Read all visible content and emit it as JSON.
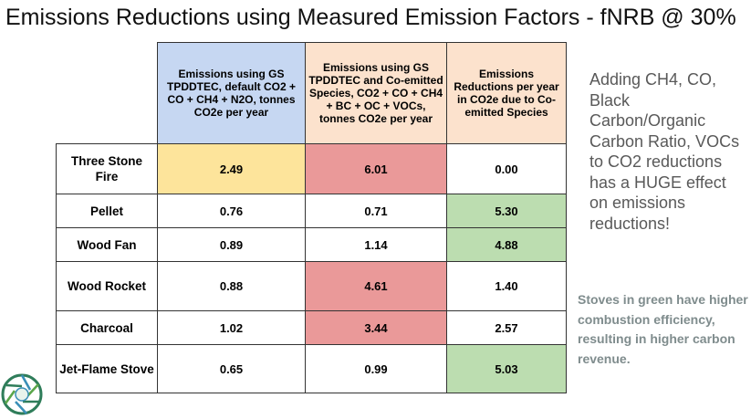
{
  "slide": {
    "title": "Emissions Reductions using Measured Emission Factors - fNRB @ 30%",
    "side_note": "Adding CH4, CO, Black Carbon/Organic Carbon Ratio, VOCs to CO2 reductions has a HUGE effect on emissions reductions!",
    "green_note": "Stoves in green have higher combustion efficiency, resulting in higher carbon revenue."
  },
  "colors": {
    "header_blue": "#c6d7f2",
    "header_peach": "#fce2cd",
    "highlight_yellow": "#fde49b",
    "highlight_red": "#ea9999",
    "highlight_green": "#bcddb0",
    "white": "#ffffff"
  },
  "table": {
    "headers": [
      "Emissions using GS TPDDTEC, default CO2 + CO + CH4 + N2O, tonnes CO2e per year",
      "Emissions using GS TPDDTEC and Co-emitted Species, CO2 + CO + CH4  + BC + OC + VOCs, tonnes CO2e per year",
      "Emissions Reductions per year in CO2e due to Co-emitted Species"
    ],
    "rows": [
      {
        "label": "Three Stone Fire",
        "values": [
          "2.49",
          "6.01",
          "0.00"
        ],
        "fills": [
          "highlight_yellow",
          "highlight_red",
          "white"
        ]
      },
      {
        "label": "Pellet",
        "values": [
          "0.76",
          "0.71",
          "5.30"
        ],
        "fills": [
          "white",
          "white",
          "highlight_green"
        ]
      },
      {
        "label": "Wood Fan",
        "values": [
          "0.89",
          "1.14",
          "4.88"
        ],
        "fills": [
          "white",
          "white",
          "highlight_green"
        ]
      },
      {
        "label": "Wood Rocket",
        "values": [
          "0.88",
          "4.61",
          "1.40"
        ],
        "fills": [
          "white",
          "highlight_red",
          "white"
        ]
      },
      {
        "label": "Charcoal",
        "values": [
          "1.02",
          "3.44",
          "2.57"
        ],
        "fills": [
          "white",
          "highlight_red",
          "white"
        ]
      },
      {
        "label": "Jet-Flame Stove",
        "values": [
          "0.65",
          "0.99",
          "5.03"
        ],
        "fills": [
          "white",
          "white",
          "highlight_green"
        ]
      }
    ]
  },
  "logo": {
    "icon": "aperture-logo-icon"
  }
}
